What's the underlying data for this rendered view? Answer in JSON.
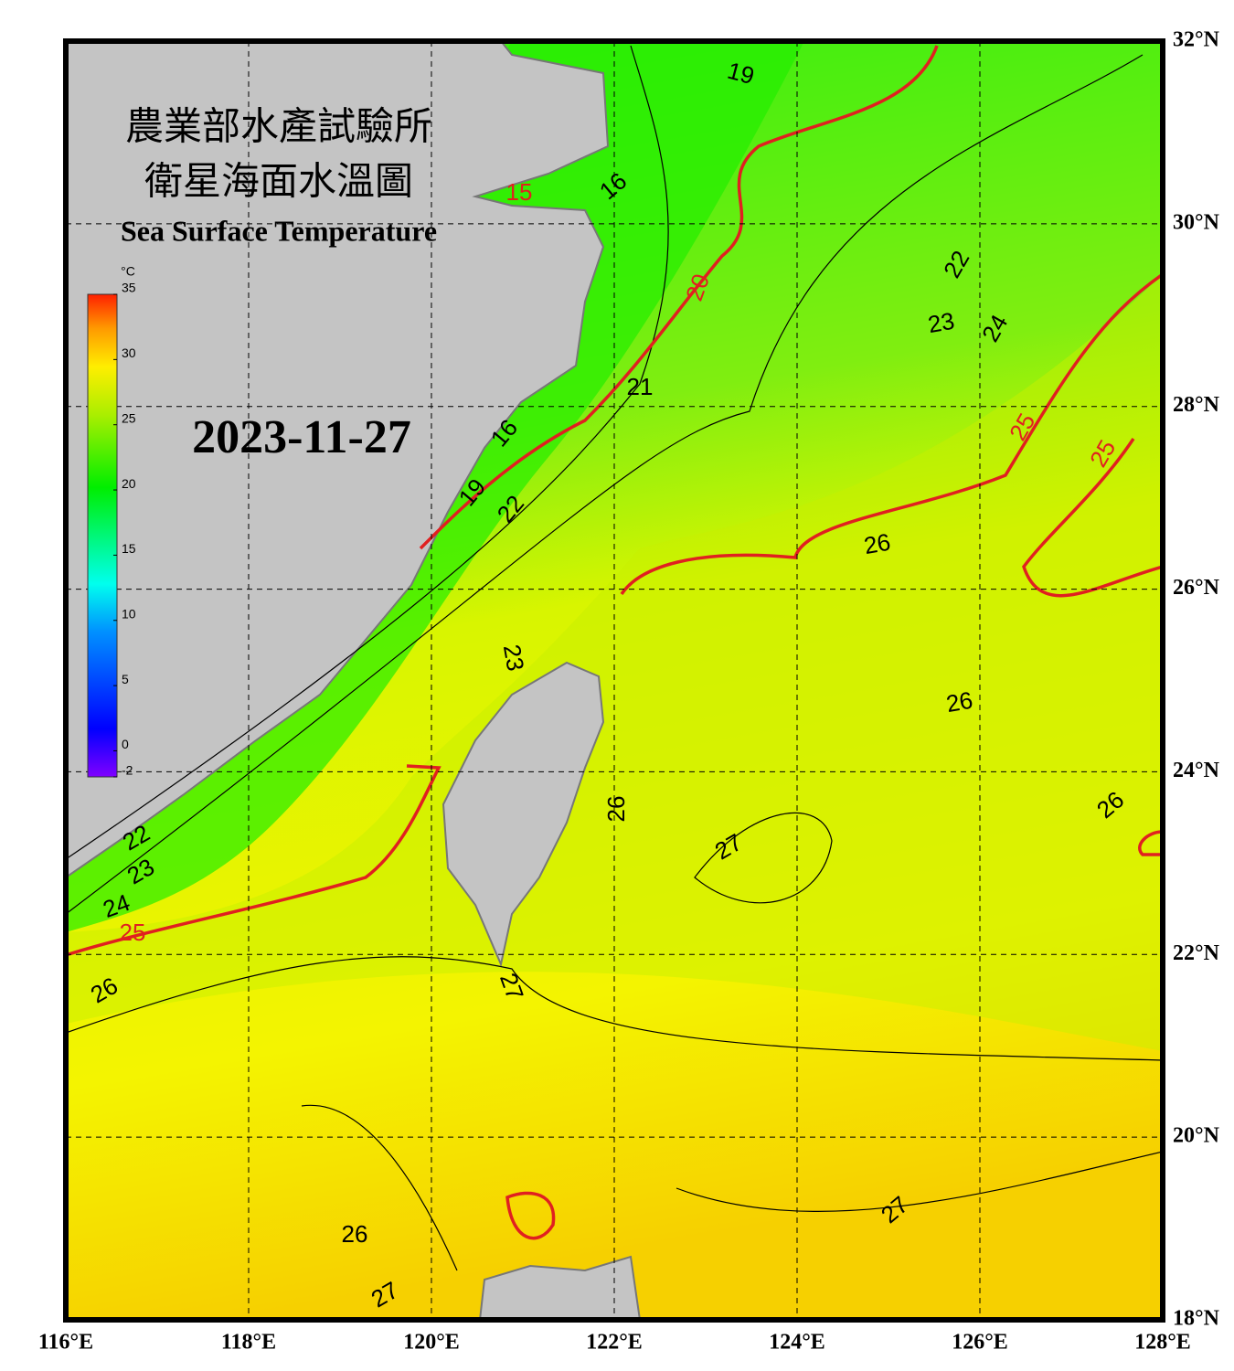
{
  "map": {
    "title_zh_1": "農業部水產試驗所",
    "title_zh_2": "衛星海面水溫圖",
    "title_en": "Sea Surface Temperature",
    "date": "2023-11-27",
    "lonlim": [
      116,
      128
    ],
    "latlim": [
      18,
      32
    ],
    "lonticks": [
      {
        "value": 116,
        "label": "116°E"
      },
      {
        "value": 118,
        "label": "118°E"
      },
      {
        "value": 120,
        "label": "120°E"
      },
      {
        "value": 122,
        "label": "122°E"
      },
      {
        "value": 124,
        "label": "124°E"
      },
      {
        "value": 126,
        "label": "126°E"
      },
      {
        "value": 128,
        "label": "128°E"
      }
    ],
    "latticks": [
      {
        "value": 18,
        "label": "18°N"
      },
      {
        "value": 20,
        "label": "20°N"
      },
      {
        "value": 22,
        "label": "22°N"
      },
      {
        "value": 24,
        "label": "24°N"
      },
      {
        "value": 26,
        "label": "26°N"
      },
      {
        "value": 28,
        "label": "28°N"
      },
      {
        "value": 30,
        "label": "30°N"
      },
      {
        "value": 32,
        "label": "32°N"
      }
    ],
    "grid": true,
    "colorbar": {
      "unit": "°C",
      "lim": [
        -2,
        35
      ],
      "ticks": [
        -2,
        0,
        5,
        10,
        15,
        20,
        25,
        30,
        35
      ]
    },
    "contour_labels": [
      19,
      16,
      15,
      20,
      22,
      23,
      24,
      21,
      25,
      25,
      16,
      19,
      22,
      26,
      23,
      26,
      26,
      27,
      26,
      22,
      23,
      24,
      25,
      26,
      27,
      27,
      26,
      27
    ]
  }
}
